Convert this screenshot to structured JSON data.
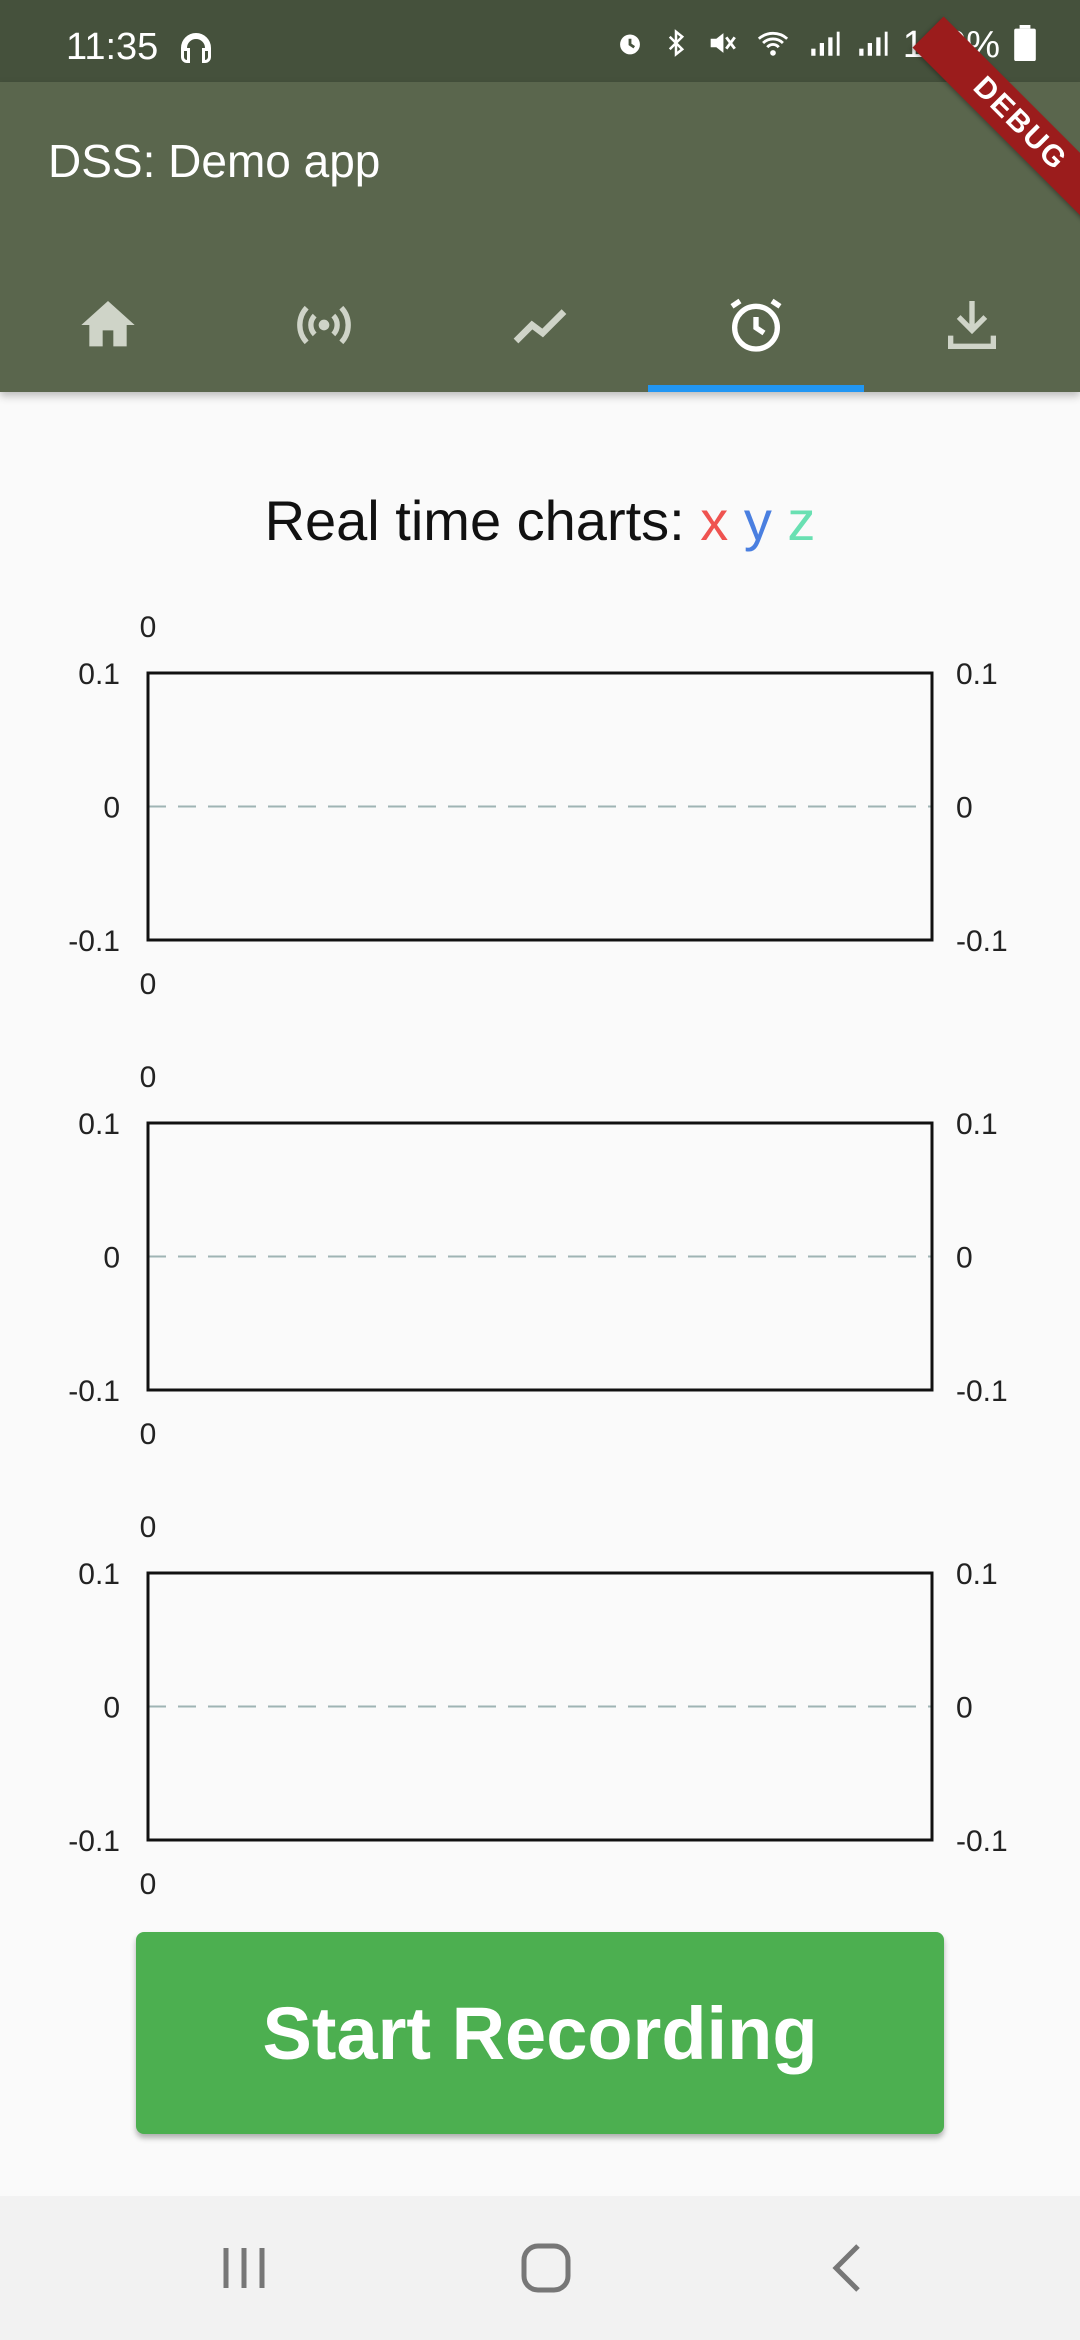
{
  "status_bar": {
    "time": "11:35",
    "battery": "100%"
  },
  "app_bar": {
    "title": "DSS: Demo app",
    "debug_label": "DEBUG"
  },
  "tabs": [
    {
      "icon": "home-icon",
      "selected": false
    },
    {
      "icon": "broadcast-icon",
      "selected": false
    },
    {
      "icon": "trend-line-icon",
      "selected": false
    },
    {
      "icon": "alarm-clock-icon",
      "selected": true
    },
    {
      "icon": "download-icon",
      "selected": false
    }
  ],
  "charts_title": {
    "prefix": "Real time charts:",
    "x": "x",
    "y": "y",
    "z": "z"
  },
  "colors": {
    "x": "#ef5350",
    "y": "#4a7fe0",
    "z": "#69e0b2",
    "accent": "#2196f3",
    "button": "#4caf50"
  },
  "chart_data": [
    {
      "type": "line",
      "series": [],
      "ylim": [
        -0.1,
        0.1
      ],
      "y_ticks": [
        "0.1",
        "0",
        "-0.1"
      ],
      "x_tick_top": "0",
      "x_tick_bottom": "0"
    },
    {
      "type": "line",
      "series": [],
      "ylim": [
        -0.1,
        0.1
      ],
      "y_ticks": [
        "0.1",
        "0",
        "-0.1"
      ],
      "x_tick_top": "0",
      "x_tick_bottom": "0"
    },
    {
      "type": "line",
      "series": [],
      "ylim": [
        -0.1,
        0.1
      ],
      "y_ticks": [
        "0.1",
        "0",
        "-0.1"
      ],
      "x_tick_top": "0",
      "x_tick_bottom": "0"
    }
  ],
  "record_button": {
    "label": "Start Recording"
  }
}
